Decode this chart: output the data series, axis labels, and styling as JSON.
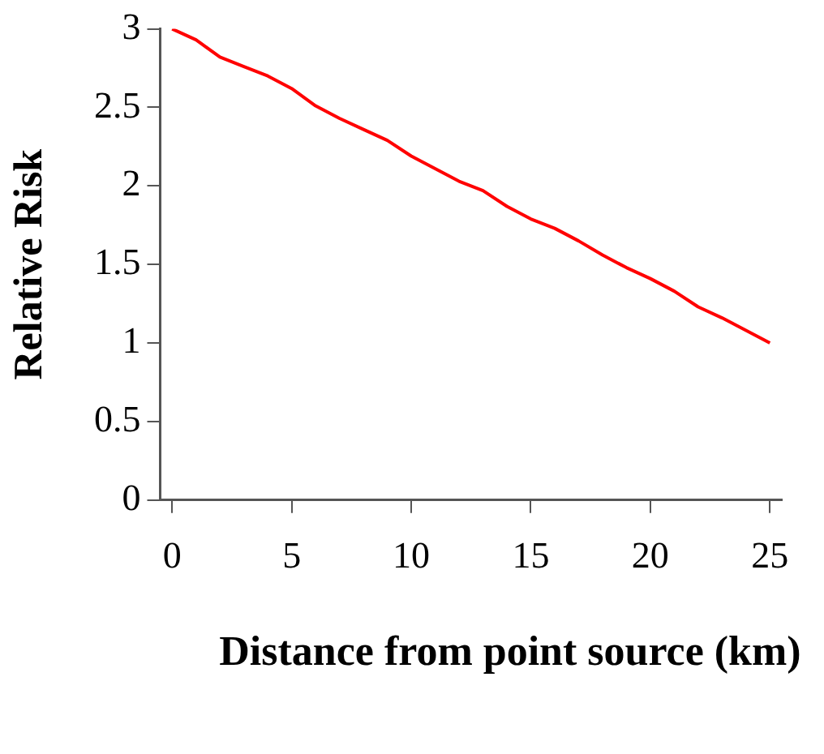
{
  "chart_data": {
    "type": "line",
    "xlabel": "Distance from point source (km)",
    "ylabel": "Relative Risk",
    "x": [
      0,
      1,
      2,
      3,
      4,
      5,
      6,
      7,
      8,
      9,
      10,
      11,
      12,
      13,
      14,
      15,
      16,
      17,
      18,
      19,
      20,
      21,
      22,
      23,
      24,
      25
    ],
    "series": [
      {
        "color": "#ff0000",
        "values": [
          3.0,
          2.93,
          2.82,
          2.76,
          2.7,
          2.62,
          2.51,
          2.43,
          2.36,
          2.29,
          2.19,
          2.11,
          2.03,
          1.97,
          1.87,
          1.79,
          1.73,
          1.65,
          1.56,
          1.48,
          1.41,
          1.33,
          1.23,
          1.16,
          1.08,
          1.0
        ]
      }
    ],
    "xlim": [
      -0.5,
      25.5
    ],
    "xticks": [
      0,
      5,
      10,
      15,
      20,
      25
    ],
    "ylim": [
      0,
      3
    ],
    "yticks": [
      0,
      0.5,
      1,
      1.5,
      2,
      2.5,
      3
    ],
    "grid": false,
    "legend": false,
    "marker": "none",
    "line_style": "solid"
  }
}
